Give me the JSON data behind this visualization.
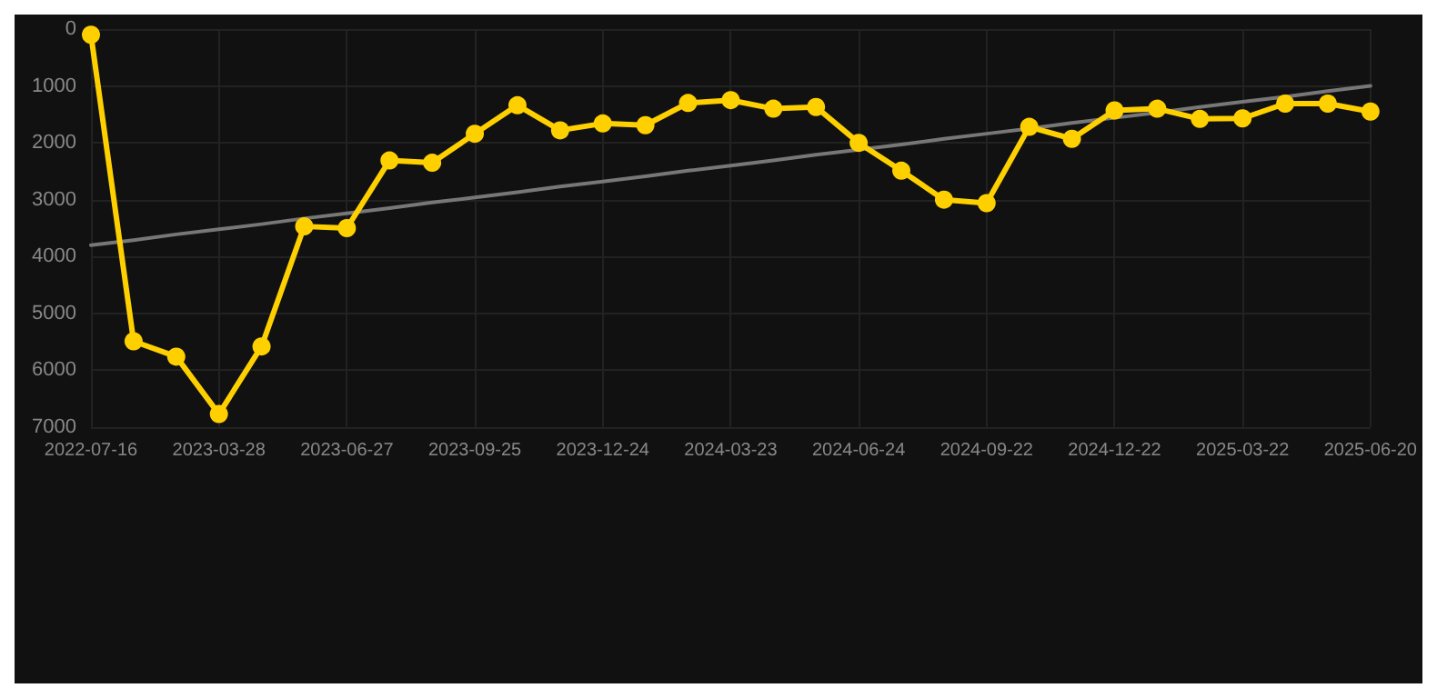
{
  "chart_data": {
    "type": "line",
    "categories": [
      "2022-07-16",
      null,
      null,
      "2023-03-28",
      null,
      null,
      "2023-06-27",
      null,
      null,
      "2023-09-25",
      null,
      null,
      "2023-12-24",
      null,
      null,
      "2024-03-23",
      null,
      null,
      "2024-06-24",
      null,
      null,
      "2024-09-22",
      null,
      null,
      "2024-12-22",
      null,
      null,
      "2025-03-22",
      null,
      null,
      "2025-06-20"
    ],
    "series": [
      {
        "color": "#ffd000",
        "marker": "circle",
        "values": [
          100,
          5490,
          5760,
          6770,
          5580,
          3470,
          3500,
          2310,
          2350,
          1840,
          1340,
          1780,
          1660,
          1690,
          1300,
          1250,
          1400,
          1370,
          2000,
          2490,
          3000,
          3060,
          1720,
          1930,
          1430,
          1400,
          1580,
          1570,
          1310,
          1310,
          1450
        ]
      },
      {
        "type": "line",
        "color": "#777777",
        "marker": "none",
        "values": [
          3800,
          3710,
          3610,
          3520,
          3430,
          3330,
          3240,
          3150,
          3050,
          2960,
          2870,
          2770,
          2680,
          2590,
          2490,
          2400,
          2310,
          2210,
          2120,
          2030,
          1930,
          1840,
          1750,
          1650,
          1560,
          1470,
          1370,
          1280,
          1190,
          1090,
          1000
        ]
      }
    ],
    "ylim": [
      7000,
      0
    ],
    "yticks": [
      0,
      1000,
      2000,
      3000,
      4000,
      5000,
      6000,
      7000
    ],
    "grid": true
  }
}
